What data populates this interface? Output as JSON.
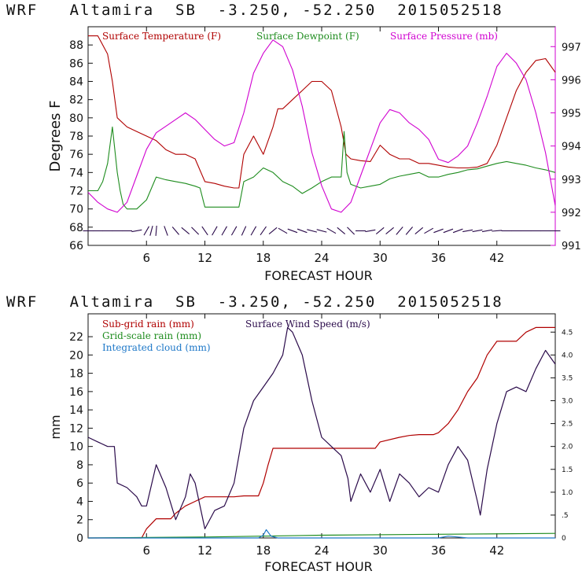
{
  "chart_data": [
    {
      "type": "line",
      "title": "WRF   Altamira  SB  -3.250, -52.250  2015052518",
      "xlabel": "FORECAST HOUR",
      "ylabel": "Degrees F",
      "xlim": [
        0,
        48
      ],
      "ylim": [
        66,
        90
      ],
      "y2lim": [
        991,
        997.6
      ],
      "x_ticks": [
        6,
        12,
        18,
        24,
        30,
        36,
        42
      ],
      "y_ticks": [
        66,
        68,
        70,
        72,
        74,
        76,
        78,
        80,
        82,
        84,
        86,
        88
      ],
      "y2_ticks": [
        991,
        992,
        993,
        994,
        995,
        996,
        997
      ],
      "legend": [
        "Surface Temperature (F)",
        "Surface Dewpoint (F)",
        "Surface Pressure (mb)"
      ],
      "colors": {
        "temperature": "#b00000",
        "dewpoint": "#1e8c1e",
        "pressure": "#d000d0",
        "wind_barbs": "#2a0a4a",
        "axis": "#111111",
        "right_axis": "#d000d0"
      },
      "series": [
        {
          "name": "Surface Temperature (F)",
          "axis": "left",
          "x": [
            0,
            1,
            2,
            2.5,
            3,
            4,
            5,
            6,
            7,
            8,
            9,
            10,
            11,
            12,
            13,
            14,
            15,
            15.5,
            16,
            17,
            17.5,
            18,
            19,
            19.5,
            20,
            21,
            22,
            23,
            24,
            25,
            26,
            26.5,
            27,
            28,
            29,
            30,
            31,
            32,
            33,
            34,
            35,
            36,
            37,
            38,
            39,
            40,
            41,
            42,
            43,
            44,
            45,
            46,
            47,
            48
          ],
          "values": [
            89,
            89,
            87,
            84,
            80,
            79,
            78.5,
            78,
            77.5,
            76.5,
            76,
            76,
            75.5,
            73,
            72.8,
            72.5,
            72.3,
            72.3,
            76,
            78,
            77,
            76,
            79,
            81,
            81,
            82,
            83,
            84,
            84,
            83,
            79,
            76,
            75.5,
            75.3,
            75.2,
            77,
            76,
            75.5,
            75.5,
            75,
            75,
            74.8,
            74.6,
            74.5,
            74.5,
            74.6,
            75,
            77,
            80,
            83,
            85,
            86.3,
            86.5,
            85
          ]
        },
        {
          "name": "Surface Dewpoint (F)",
          "axis": "left",
          "x": [
            0,
            1,
            1.5,
            2,
            2.5,
            3,
            3.3,
            3.6,
            4,
            5,
            6,
            7,
            8,
            9,
            10,
            11,
            11.5,
            12,
            13,
            14,
            15,
            15.5,
            16,
            17,
            18,
            19,
            20,
            21,
            22,
            23,
            24,
            25,
            26,
            26.3,
            26.6,
            27,
            28,
            29,
            30,
            31,
            32,
            33,
            34,
            35,
            36,
            37,
            38,
            39,
            40,
            41,
            42,
            43,
            44,
            45,
            46,
            47,
            48
          ],
          "values": [
            72,
            72,
            73,
            75,
            79,
            74,
            72,
            70.5,
            70,
            70,
            71,
            73.5,
            73.2,
            73,
            72.8,
            72.5,
            72.3,
            70.2,
            70.2,
            70.2,
            70.2,
            70.2,
            73,
            73.5,
            74.5,
            74,
            73,
            72.5,
            71.7,
            72.3,
            73,
            73.5,
            73.5,
            78.5,
            74,
            72.7,
            72.3,
            72.5,
            72.7,
            73.3,
            73.6,
            73.8,
            74,
            73.5,
            73.5,
            73.8,
            74,
            74.3,
            74.4,
            74.7,
            75,
            75.2,
            75,
            74.8,
            74.5,
            74.3,
            74
          ]
        },
        {
          "name": "Surface Pressure (mb)",
          "axis": "right",
          "x": [
            0,
            1,
            2,
            3,
            4,
            5,
            6,
            7,
            8,
            9,
            10,
            11,
            12,
            13,
            14,
            15,
            16,
            17,
            18,
            19,
            20,
            21,
            22,
            23,
            24,
            25,
            26,
            27,
            28,
            29,
            30,
            31,
            32,
            33,
            34,
            35,
            36,
            37,
            38,
            39,
            40,
            41,
            42,
            43,
            44,
            45,
            46,
            47,
            48
          ],
          "values": [
            992.6,
            992.3,
            992.1,
            992.0,
            992.3,
            993.1,
            993.9,
            994.4,
            994.6,
            994.8,
            995.0,
            994.8,
            994.5,
            994.2,
            994.0,
            994.1,
            995.0,
            996.2,
            996.8,
            997.2,
            997.0,
            996.3,
            995.2,
            993.8,
            992.8,
            992.1,
            992.0,
            992.3,
            993.1,
            993.9,
            994.7,
            995.1,
            995.0,
            994.7,
            994.5,
            994.2,
            993.6,
            993.5,
            993.7,
            994.0,
            994.7,
            995.5,
            996.4,
            996.8,
            996.5,
            996.0,
            995.0,
            993.8,
            992.2
          ]
        }
      ],
      "wind_barbs": {
        "x": [
          0,
          1,
          2,
          3,
          4,
          5,
          6,
          6.5,
          7,
          8,
          9,
          10,
          11,
          12,
          13,
          14,
          15,
          16,
          17,
          18,
          19,
          20,
          21,
          22,
          23,
          24,
          25,
          26,
          27,
          28,
          29,
          30,
          31,
          32,
          33,
          34,
          35,
          36,
          37,
          38,
          39,
          40,
          41,
          42,
          43,
          44,
          45,
          46,
          47,
          48
        ],
        "angle_deg": [
          0,
          0,
          0,
          0,
          0,
          10,
          60,
          75,
          85,
          110,
          130,
          140,
          135,
          125,
          60,
          60,
          60,
          65,
          60,
          55,
          40,
          150,
          160,
          160,
          165,
          165,
          150,
          140,
          135,
          0,
          10,
          40,
          40,
          50,
          50,
          40,
          30,
          20,
          20,
          20,
          10,
          10,
          10,
          5,
          0,
          0,
          0,
          0,
          0,
          0
        ]
      }
    },
    {
      "type": "line",
      "title": "WRF   Altamira  SB  -3.250, -52.250  2015052518",
      "xlabel": "FORECAST HOUR",
      "ylabel": "mm",
      "xlim": [
        0,
        48
      ],
      "ylim": [
        0,
        24.5
      ],
      "y2lim": [
        0,
        4.9
      ],
      "x_ticks": [
        6,
        12,
        18,
        24,
        30,
        36,
        42
      ],
      "y_ticks": [
        0,
        2,
        4,
        6,
        8,
        10,
        12,
        14,
        16,
        18,
        20,
        22
      ],
      "y2_ticks": [
        0,
        0.5,
        1.0,
        1.5,
        2.0,
        2.5,
        3.0,
        3.5,
        4.0,
        4.5
      ],
      "y2_tick_labels": [
        "0",
        ".5",
        "1.0",
        "1.5",
        "2.0",
        "2.5",
        "3.0",
        "3.5",
        "4.0",
        "4.5"
      ],
      "legend": [
        "Sub-grid rain (mm)",
        "Surface Wind Speed (m/s)",
        "Grid-scale rain (mm)",
        "Integrated cloud (mm)"
      ],
      "colors": {
        "subgrid": "#b00000",
        "wind": "#2a0a4a",
        "gridscale": "#1e8c1e",
        "cloud": "#1e78c8",
        "axis": "#111111"
      },
      "series": [
        {
          "name": "Sub-grid rain (mm)",
          "axis": "left",
          "x": [
            0,
            5.5,
            6,
            7,
            8.5,
            9,
            10,
            11,
            12,
            13,
            15,
            16,
            17.5,
            18,
            18.5,
            19,
            24,
            29.5,
            30,
            32,
            33,
            34,
            35,
            35.5,
            36,
            37,
            38,
            39,
            40,
            41,
            42,
            43,
            44,
            45,
            46,
            47,
            48
          ],
          "values": [
            0,
            0,
            1,
            2.1,
            2.1,
            2.7,
            3.5,
            4,
            4.5,
            4.5,
            4.5,
            4.6,
            4.6,
            6,
            8,
            9.8,
            9.8,
            9.8,
            10.5,
            11,
            11.2,
            11.3,
            11.3,
            11.3,
            11.5,
            12.5,
            14,
            16,
            17.5,
            20,
            21.5,
            21.5,
            21.5,
            22.5,
            23,
            23,
            23
          ]
        },
        {
          "name": "Surface Wind Speed (m/s)",
          "axis": "right",
          "x": [
            0,
            1,
            2,
            2.7,
            3,
            4,
            5,
            5.5,
            6,
            7,
            8,
            9,
            10,
            10.5,
            11,
            12,
            13,
            14,
            15,
            16,
            17,
            18,
            19,
            20,
            20.5,
            21,
            22,
            23,
            24,
            25,
            26,
            26.7,
            27,
            28,
            29,
            30,
            31,
            32,
            33,
            34,
            35,
            36,
            37,
            38,
            39,
            40,
            40.3,
            41,
            42,
            43,
            44,
            45,
            46,
            47,
            48
          ],
          "values": [
            2.2,
            2.1,
            2.0,
            2.0,
            1.2,
            1.1,
            0.9,
            0.7,
            0.7,
            1.6,
            1.1,
            0.4,
            0.9,
            1.4,
            1.2,
            0.2,
            0.6,
            0.7,
            1.2,
            2.4,
            3.0,
            3.3,
            3.6,
            4.0,
            4.6,
            4.5,
            4.0,
            3.0,
            2.2,
            2.0,
            1.8,
            1.3,
            0.8,
            1.4,
            1.0,
            1.5,
            0.8,
            1.4,
            1.2,
            0.9,
            1.1,
            1.0,
            1.6,
            2.0,
            1.7,
            0.8,
            0.5,
            1.5,
            2.5,
            3.2,
            3.3,
            3.2,
            3.7,
            4.1,
            3.8
          ]
        },
        {
          "name": "Grid-scale rain (mm)",
          "axis": "left",
          "x": [
            0,
            12,
            24,
            36,
            48
          ],
          "values": [
            0,
            0.1,
            0.3,
            0.4,
            0.5
          ]
        },
        {
          "name": "Integrated cloud (mm)",
          "axis": "left",
          "x": [
            0,
            17.5,
            18,
            18.3,
            18.8,
            19.5,
            25,
            36,
            37,
            38,
            39,
            48
          ],
          "values": [
            0,
            0,
            0.3,
            0.9,
            0.2,
            0,
            0,
            0,
            0.2,
            0.1,
            0,
            0
          ]
        }
      ]
    }
  ]
}
